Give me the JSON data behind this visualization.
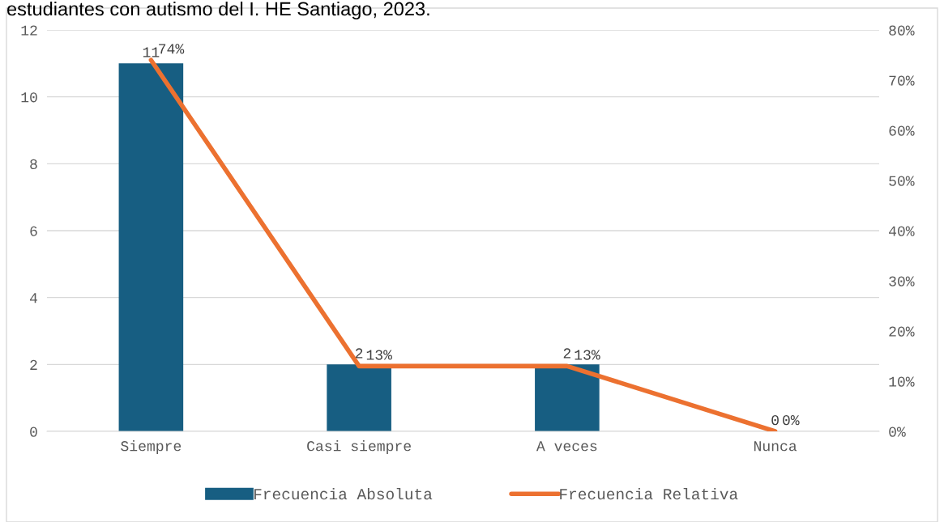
{
  "chart_data": {
    "type": "bar",
    "title": "estudiantes con autismo del I. HE Santiago, 2023.",
    "categories": [
      "Siempre",
      "Casi siempre",
      "A veces",
      "Nunca"
    ],
    "series": [
      {
        "name": "Frecuencia Absoluta",
        "color": "#175e82",
        "values": [
          11,
          2,
          2,
          0
        ],
        "data_labels": true
      },
      {
        "name": "Frecuencia Relativa",
        "type": "line",
        "axis": "y2",
        "color": "#ec7130",
        "values": [
          74,
          13,
          13,
          0
        ],
        "value_labels": [
          "74%",
          "13%",
          "13%",
          "0%"
        ]
      }
    ],
    "ylim": [
      0,
      12
    ],
    "yticks": [
      0,
      2,
      4,
      6,
      8,
      10,
      12
    ],
    "y2lim": [
      0,
      80
    ],
    "y2ticks": [
      {
        "value": 0,
        "label": "0%"
      },
      {
        "value": 10,
        "label": "10%"
      },
      {
        "value": 20,
        "label": "20%"
      },
      {
        "value": 30,
        "label": "30%"
      },
      {
        "value": 40,
        "label": "40%"
      },
      {
        "value": 50,
        "label": "50%"
      },
      {
        "value": 60,
        "label": "60%"
      },
      {
        "value": 70,
        "label": "70%"
      },
      {
        "value": 80,
        "label": "80%"
      }
    ],
    "grid": "y",
    "legend": "bottom",
    "marker": "none",
    "line_style": "solid"
  }
}
